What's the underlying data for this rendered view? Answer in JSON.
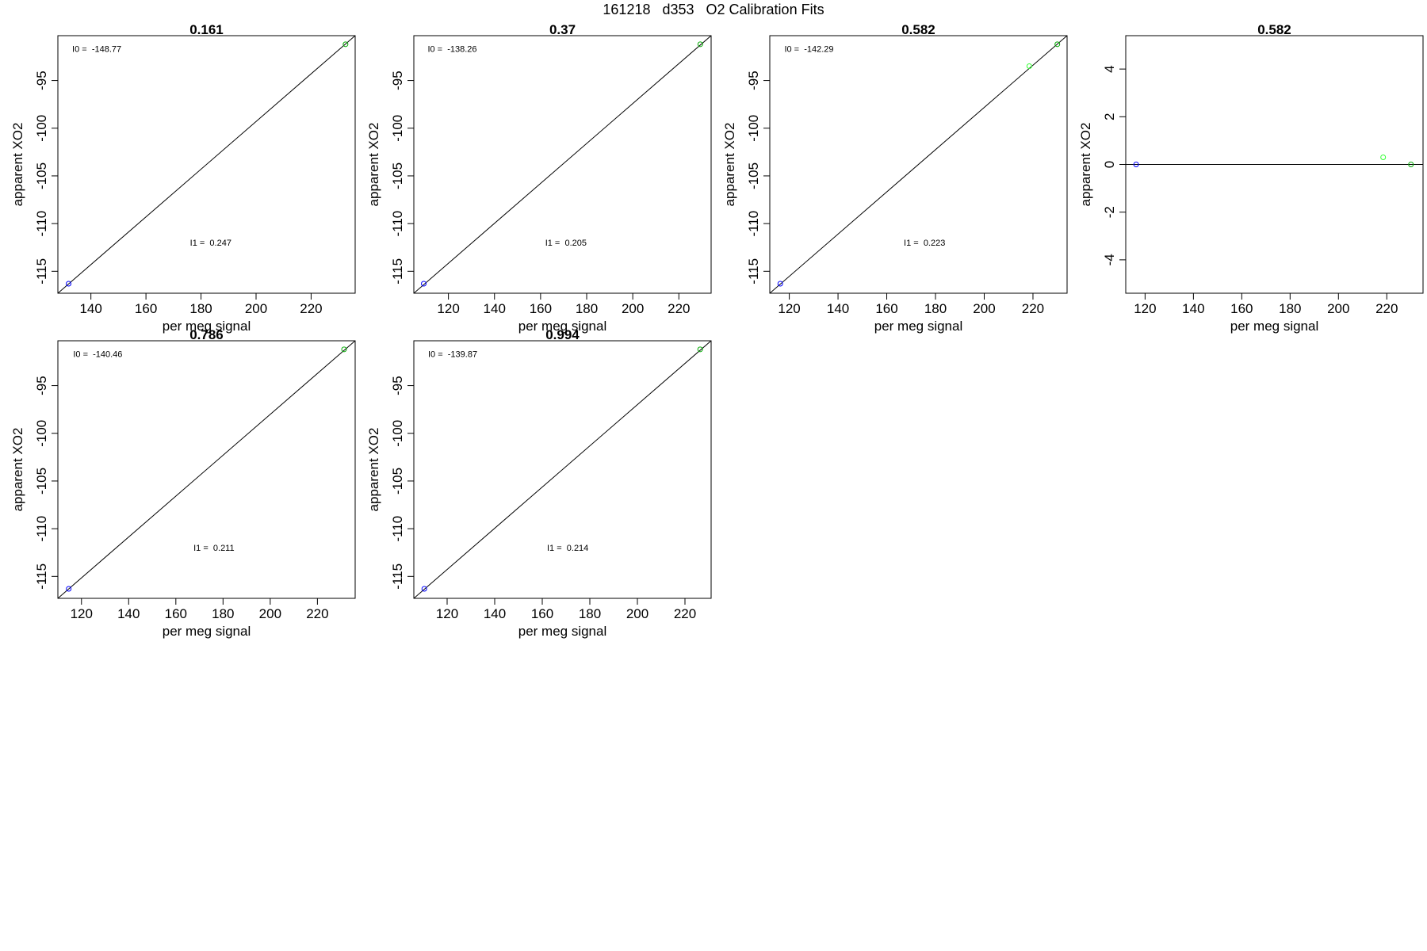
{
  "figure": {
    "title": "161218   d353   O2 Calibration Fits"
  },
  "chart_data": [
    {
      "type": "scatter",
      "title": "0.161",
      "xlabel": "per meg signal",
      "ylabel": "apparent XO2",
      "xlim": [
        128,
        236
      ],
      "ylim": [
        -117.3,
        -90.3
      ],
      "xticks": [
        140,
        160,
        180,
        200,
        220
      ],
      "yticks": [
        -115,
        -110,
        -105,
        -100,
        -95
      ],
      "grid": false,
      "line": {
        "x": [
          128,
          236
        ],
        "y": [
          -117.3,
          -90.3
        ]
      },
      "points": [
        {
          "x": 131.9,
          "y": -116.3,
          "color": "#0000ff"
        },
        {
          "x": 232.5,
          "y": -91.2,
          "color": "#00aa00"
        }
      ],
      "annotations": [
        {
          "text": "I0 =  -148.77",
          "x": 133.2,
          "y": -92.0
        },
        {
          "text": "I1 =  0.247",
          "x": 176.0,
          "y": -112.3
        }
      ]
    },
    {
      "type": "scatter",
      "title": "0.37",
      "xlabel": "per meg signal",
      "ylabel": "apparent XO2",
      "xlim": [
        105,
        234
      ],
      "ylim": [
        -117.3,
        -90.3
      ],
      "xticks": [
        120,
        140,
        160,
        180,
        200,
        220
      ],
      "yticks": [
        -115,
        -110,
        -105,
        -100,
        -95
      ],
      "grid": false,
      "line": {
        "x": [
          105,
          234
        ],
        "y": [
          -117.3,
          -90.3
        ]
      },
      "points": [
        {
          "x": 109.3,
          "y": -116.3,
          "color": "#0000ff"
        },
        {
          "x": 229.3,
          "y": -91.2,
          "color": "#00aa00"
        }
      ],
      "annotations": [
        {
          "text": "I0 =  -138.26",
          "x": 111.0,
          "y": -92.0
        },
        {
          "text": "I1 =  0.205",
          "x": 162.0,
          "y": -112.3
        }
      ]
    },
    {
      "type": "scatter",
      "title": "0.582",
      "xlabel": "per meg signal",
      "ylabel": "apparent XO2",
      "xlim": [
        112,
        234
      ],
      "ylim": [
        -117.3,
        -90.3
      ],
      "xticks": [
        120,
        140,
        160,
        180,
        200,
        220
      ],
      "yticks": [
        -115,
        -110,
        -105,
        -100,
        -95
      ],
      "grid": false,
      "line": {
        "x": [
          112,
          234
        ],
        "y": [
          -117.3,
          -90.3
        ]
      },
      "points": [
        {
          "x": 116.3,
          "y": -116.3,
          "color": "#0000ff"
        },
        {
          "x": 230.0,
          "y": -91.2,
          "color": "#00aa00"
        },
        {
          "x": 218.5,
          "y": -93.5,
          "color": "#33ff33"
        }
      ],
      "annotations": [
        {
          "text": "I0 =  -142.29",
          "x": 118.0,
          "y": -92.0
        },
        {
          "text": "I1 =  0.223",
          "x": 167.0,
          "y": -112.3
        }
      ]
    },
    {
      "type": "scatter",
      "title": "0.582",
      "xlabel": "per meg signal",
      "ylabel": "apparent XO2",
      "xlim": [
        112,
        235
      ],
      "ylim": [
        -5.4,
        5.4
      ],
      "xticks": [
        120,
        140,
        160,
        180,
        200,
        220
      ],
      "yticks": [
        -4,
        -2,
        0,
        2,
        4
      ],
      "grid": false,
      "hline": 0,
      "points": [
        {
          "x": 116.3,
          "y": 0.0,
          "color": "#0000ff"
        },
        {
          "x": 230.0,
          "y": 0.0,
          "color": "#00aa00"
        },
        {
          "x": 218.5,
          "y": 0.3,
          "color": "#33ff33"
        }
      ],
      "annotations": []
    },
    {
      "type": "scatter",
      "title": "0.786",
      "xlabel": "per meg signal",
      "ylabel": "apparent XO2",
      "xlim": [
        110,
        236
      ],
      "ylim": [
        -117.3,
        -90.3
      ],
      "xticks": [
        120,
        140,
        160,
        180,
        200,
        220
      ],
      "yticks": [
        -115,
        -110,
        -105,
        -100,
        -95
      ],
      "grid": false,
      "line": {
        "x": [
          110,
          236
        ],
        "y": [
          -117.3,
          -90.3
        ]
      },
      "points": [
        {
          "x": 114.6,
          "y": -116.3,
          "color": "#0000ff"
        },
        {
          "x": 231.3,
          "y": -91.2,
          "color": "#00aa00"
        }
      ],
      "annotations": [
        {
          "text": "I0 =  -140.46",
          "x": 116.5,
          "y": -92.0
        },
        {
          "text": "I1 =  0.211",
          "x": 167.5,
          "y": -112.3
        }
      ]
    },
    {
      "type": "scatter",
      "title": "0.994",
      "xlabel": "per meg signal",
      "ylabel": "apparent XO2",
      "xlim": [
        106,
        231
      ],
      "ylim": [
        -117.3,
        -90.3
      ],
      "xticks": [
        120,
        140,
        160,
        180,
        200,
        220
      ],
      "yticks": [
        -115,
        -110,
        -105,
        -100,
        -95
      ],
      "grid": false,
      "line": {
        "x": [
          106,
          231
        ],
        "y": [
          -117.3,
          -90.3
        ]
      },
      "points": [
        {
          "x": 110.4,
          "y": -116.3,
          "color": "#0000ff"
        },
        {
          "x": 226.4,
          "y": -91.2,
          "color": "#00aa00"
        }
      ],
      "annotations": [
        {
          "text": "I0 =  -139.87",
          "x": 112.0,
          "y": -92.0
        },
        {
          "text": "I1 =  0.214",
          "x": 162.0,
          "y": -112.3
        }
      ]
    }
  ]
}
